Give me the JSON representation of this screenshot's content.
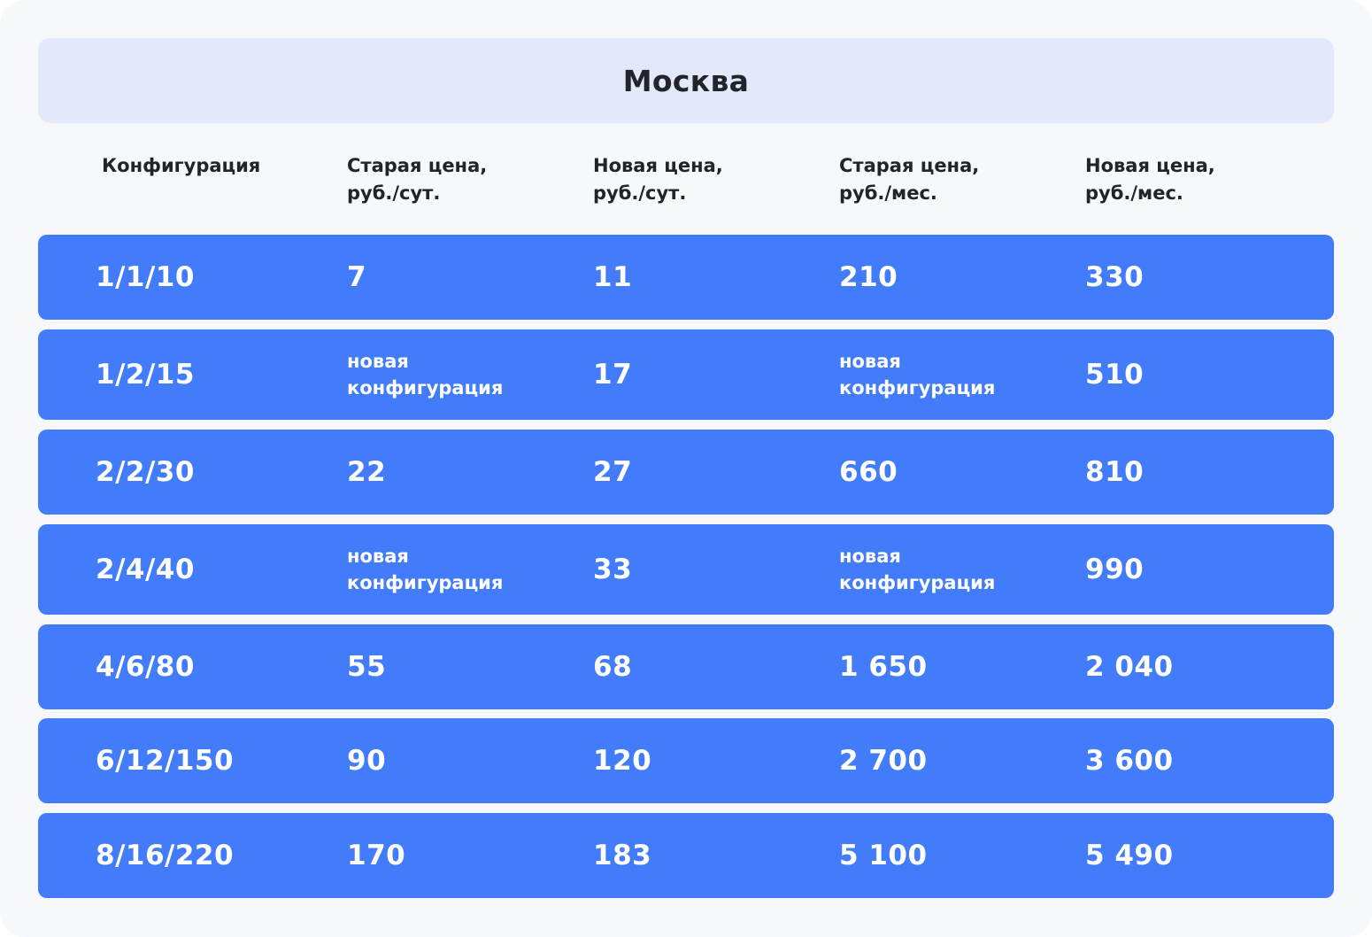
{
  "title": "Москва",
  "columns": [
    "Конфигурация",
    "Старая цена,\nруб./сут.",
    "Новая цена,\nруб./сут.",
    "Старая цена,\nруб./мес.",
    "Новая цена,\nруб./мес."
  ],
  "rows": [
    [
      "1/1/10",
      "7",
      "11",
      "210",
      "330"
    ],
    [
      "1/2/15",
      "новая\nконфигурация",
      "17",
      "новая\nконфигурация",
      "510"
    ],
    [
      "2/2/30",
      "22",
      "27",
      "660",
      "810"
    ],
    [
      "2/4/40",
      "новая\nконфигурация",
      "33",
      "новая\nконфигурация",
      "990"
    ],
    [
      "4/6/80",
      "55",
      "68",
      "1 650",
      "2 040"
    ],
    [
      "6/12/150",
      "90",
      "120",
      "2 700",
      "3 600"
    ],
    [
      "8/16/220",
      "170",
      "183",
      "5 100",
      "5 490"
    ]
  ],
  "colors": {
    "background": "#f6f8fc",
    "title_bar": "#e3e9fa",
    "row": "#437cfa",
    "text_dark": "#22242a",
    "text_light": "#ffffff"
  }
}
